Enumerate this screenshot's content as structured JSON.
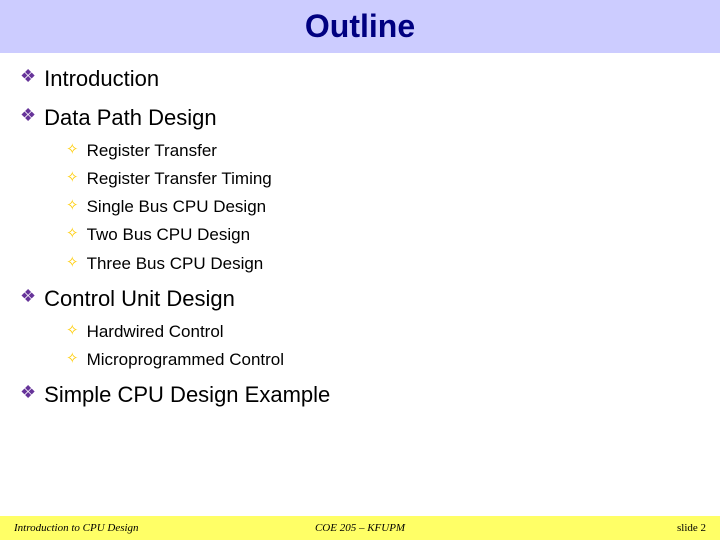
{
  "title": "Outline",
  "title_color": "#000080",
  "title_bg": "#ccccff",
  "bullets": {
    "lvl1_color": "#663399",
    "lvl1_glyph": "❖",
    "lvl2_color": "#ffcc00",
    "lvl2_glyph": "✧"
  },
  "items": [
    {
      "level": 1,
      "text": "Introduction"
    },
    {
      "level": 1,
      "text": "Data Path Design"
    },
    {
      "level": 2,
      "text": "Register Transfer"
    },
    {
      "level": 2,
      "text": "Register Transfer Timing"
    },
    {
      "level": 2,
      "text": "Single Bus CPU Design"
    },
    {
      "level": 2,
      "text": "Two Bus CPU Design"
    },
    {
      "level": 2,
      "text": "Three Bus CPU Design"
    },
    {
      "level": 1,
      "text": "Control Unit Design"
    },
    {
      "level": 2,
      "text": "Hardwired Control"
    },
    {
      "level": 2,
      "text": "Microprogrammed Control"
    },
    {
      "level": 1,
      "text": "Simple CPU Design Example"
    }
  ],
  "footer": {
    "left": "Introduction to CPU Design",
    "center": "COE 205 – KFUPM",
    "right": "slide 2",
    "bg": "#ffff66"
  }
}
